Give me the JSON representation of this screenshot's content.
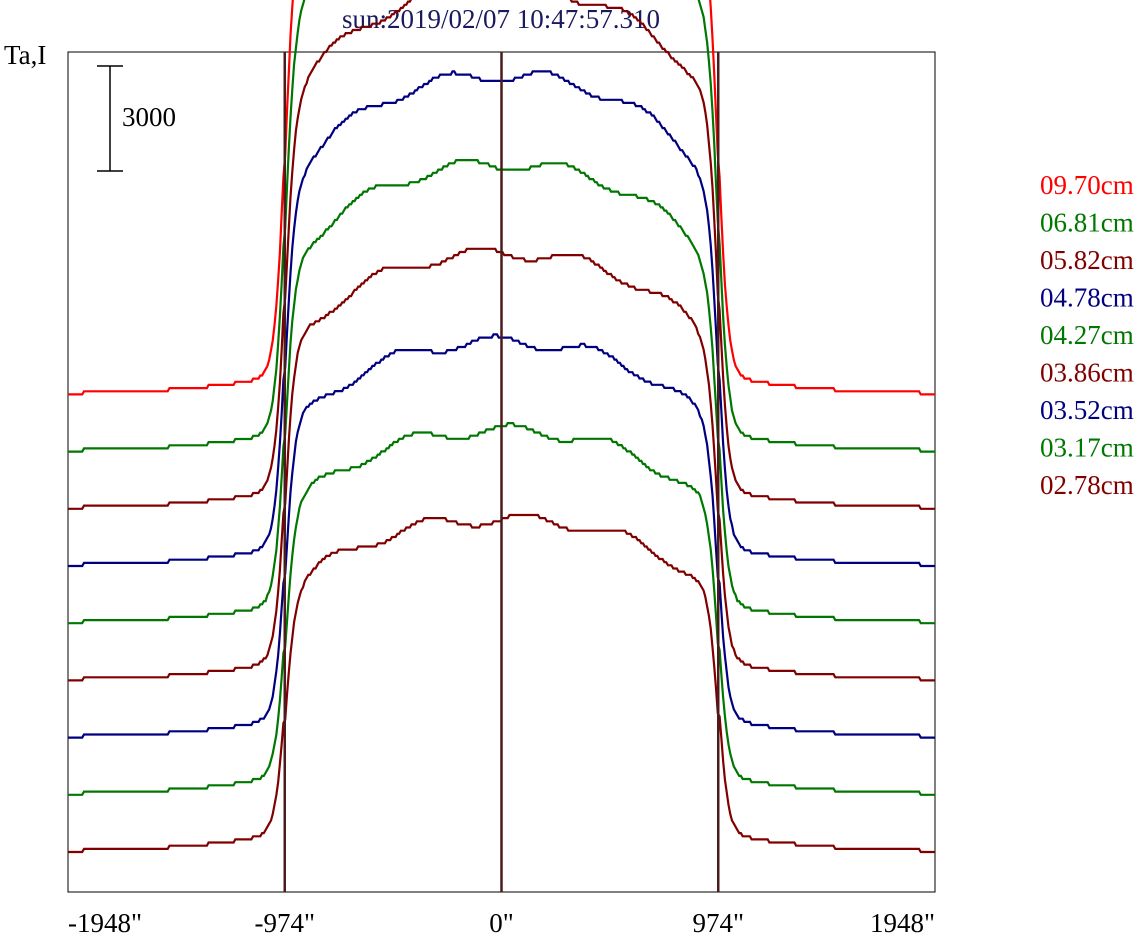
{
  "chart_data": {
    "type": "line",
    "title": "sun:2019/02/07 10:47:57.310",
    "ylabel": "Ta,I",
    "xlabel": "",
    "x_ticks": [
      "-1948\"",
      "-974\"",
      "0\"",
      "974\"",
      "1948\""
    ],
    "x_tick_values": [
      -1948,
      -974,
      0,
      974,
      1948
    ],
    "xlim": [
      -1948,
      1948
    ],
    "vertical_lines": [
      -974,
      0,
      974
    ],
    "vertical_line_color": "#4a1c1c",
    "scale_bar": {
      "value": 3000,
      "label": "3000"
    },
    "grid": false,
    "legend_position": "right",
    "series": [
      {
        "name": "09.70cm",
        "color": "#ff0000",
        "offset_rank": 8,
        "center_peak": true
      },
      {
        "name": "06.81cm",
        "color": "#007700",
        "offset_rank": 7,
        "center_peak": true
      },
      {
        "name": "05.82cm",
        "color": "#800000",
        "offset_rank": 6,
        "center_peak": true
      },
      {
        "name": "04.78cm",
        "color": "#000080",
        "offset_rank": 5,
        "center_peak": false
      },
      {
        "name": "04.27cm",
        "color": "#007700",
        "offset_rank": 4,
        "center_peak": false
      },
      {
        "name": "03.86cm",
        "color": "#800000",
        "offset_rank": 3,
        "center_peak": false
      },
      {
        "name": "03.52cm",
        "color": "#000080",
        "offset_rank": 2,
        "center_peak": false
      },
      {
        "name": "03.17cm",
        "color": "#007700",
        "offset_rank": 1,
        "center_peak": false
      },
      {
        "name": "02.78cm",
        "color": "#800000",
        "offset_rank": 0,
        "center_peak": false
      }
    ]
  }
}
